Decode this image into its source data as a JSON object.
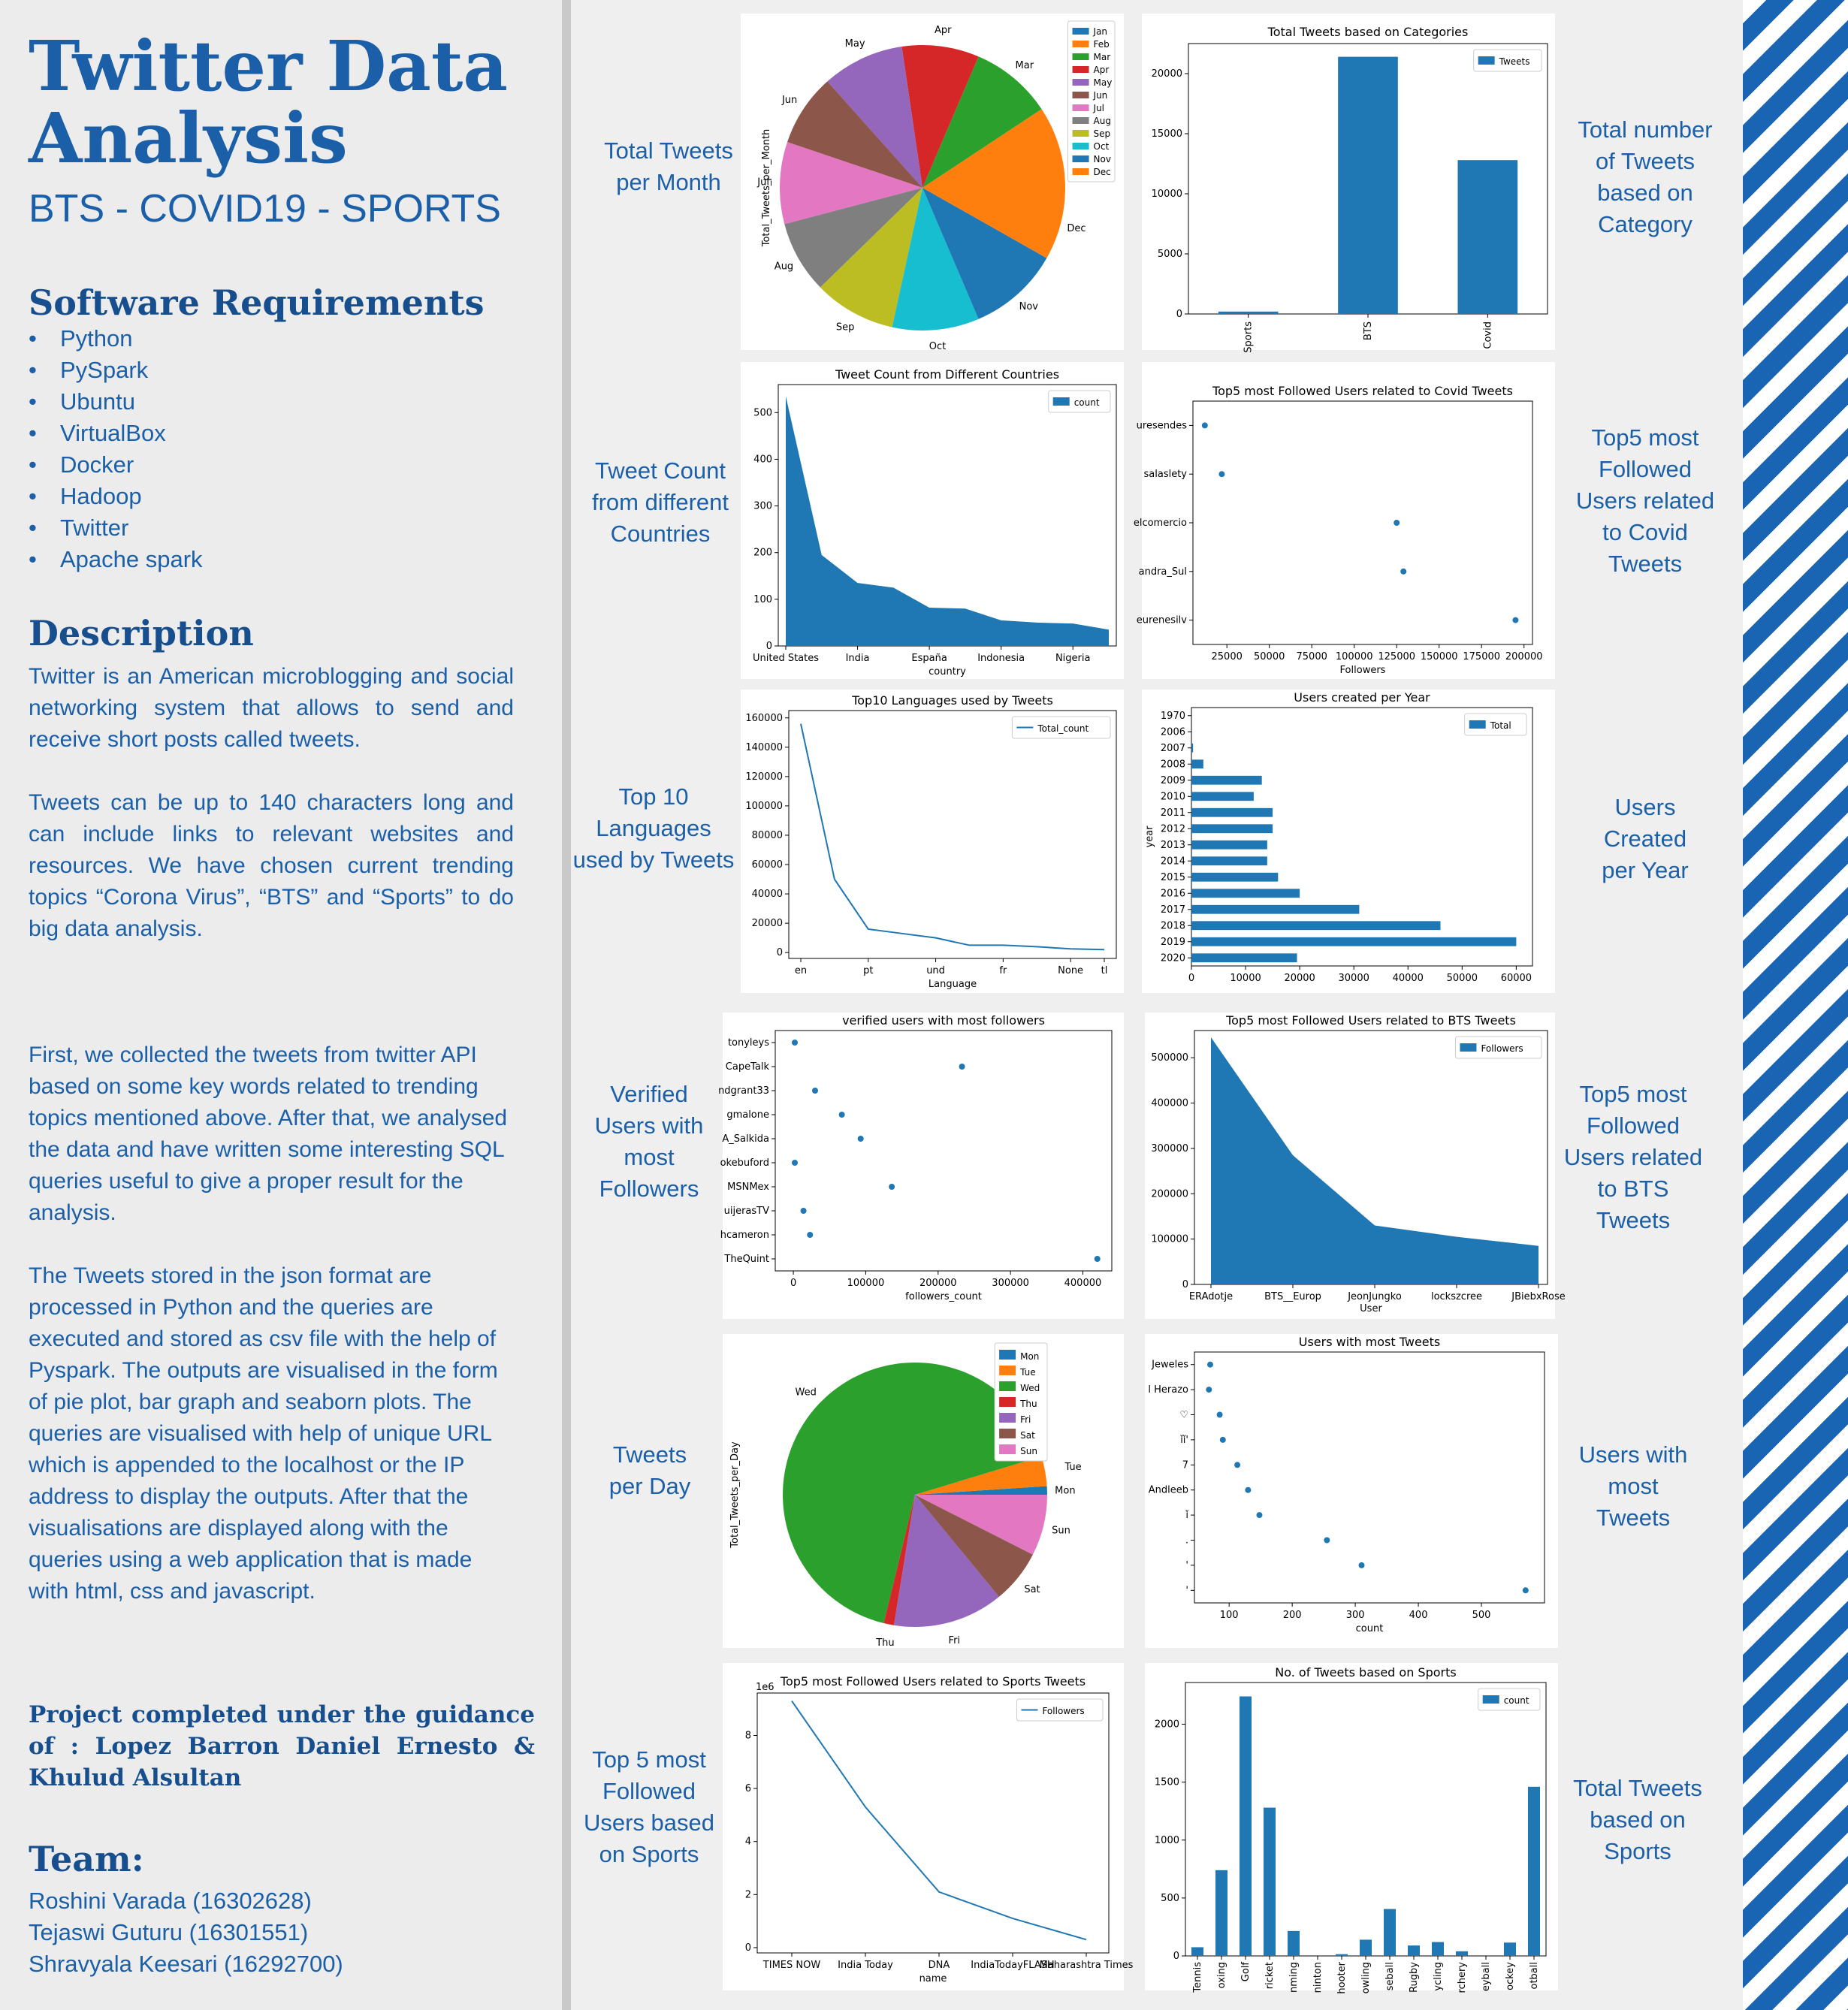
{
  "header": {
    "title": "Twitter Data Analysis",
    "subtitle": "BTS - COVID19 - SPORTS"
  },
  "software": {
    "heading": "Software Requirements",
    "items": [
      "Python",
      "PySpark",
      "Ubuntu",
      "VirtualBox",
      "Docker",
      "Hadoop",
      "Twitter",
      "Apache spark"
    ]
  },
  "description": {
    "heading": "Description",
    "p1": "Twitter is an American microblogging and social networking system that allows to send and receive short posts called tweets.",
    "p2": "Tweets can be up to 140 characters long and can include links to relevant websites and resources. We have chosen current trending topics “Corona Virus”, “BTS” and “Sports” to do big data analysis.",
    "p3": "First, we collected the tweets from twitter API based on some key words related to trending topics mentioned above. After that, we analysed the data and have written some interesting SQL queries useful to give a proper result for the analysis.",
    "p4": "The Tweets stored in the json format are processed in Python and the queries are executed and stored as csv file with the help of Pyspark. The outputs are visualised in the form of pie plot, bar graph and seaborn plots. The queries are visualised with help of unique URL which is appended to the localhost or the IP address to display the outputs. After that the visualisations are displayed along with the queries using a web application that is made with html, css and javascript."
  },
  "guidance": "Project completed under the guidance of : Lopez Barron Daniel Ernesto & Khulud Alsultan",
  "team": {
    "heading": "Team:",
    "members": [
      "Roshini Varada (16302628)",
      "Tejaswi Guturu (16301551)",
      "Shravyala Keesari (16292700)"
    ]
  },
  "captions": {
    "c1": "Total Tweets per Month",
    "c2": "Total number of Tweets based on Category",
    "c3": "Tweet Count from different Countries",
    "c4": "Top5 most Followed Users related to Covid Tweets",
    "c5": "Top 10 Languages used by Tweets",
    "c6": "Users Created per Year",
    "c7": "Verified Users with most Followers",
    "c8": "Top5 most Followed Users related to BTS Tweets",
    "c9": "Tweets per Day",
    "c10": "Users with most Tweets",
    "c11": "Top 5 most Followed Users based on Sports",
    "c12": "Total Tweets based on Sports"
  },
  "colors": {
    "blue": "#1f77b4",
    "orange": "#ff7f0e",
    "green": "#2ca02c",
    "red": "#d62728",
    "purple": "#9467bd",
    "brown": "#8c564b",
    "pink": "#e377c2",
    "gray": "#7f7f7f",
    "olive": "#bcbd22",
    "cyan": "#17becf"
  },
  "chart_data": [
    {
      "id": "month_pie",
      "type": "pie",
      "title": "",
      "ylabel": "Total_Tweets_per_Month",
      "categories": [
        "Jan",
        "Feb",
        "Mar",
        "Apr",
        "May",
        "Jun",
        "Jul",
        "Aug",
        "Sep",
        "Oct",
        "Nov",
        "Dec"
      ],
      "slice_labels": [
        "",
        "F",
        "Mar",
        "Apr",
        "May",
        "Jun",
        "Jul",
        "Aug",
        "Sep",
        "Oct",
        "Nov",
        "Dec"
      ],
      "values": [
        0,
        8.5,
        8.5,
        8.0,
        8.5,
        7.5,
        8.5,
        7.5,
        8.5,
        9.0,
        9.5,
        7.5
      ],
      "legend": "top-right"
    },
    {
      "id": "category_bar",
      "type": "bar",
      "title": "Total Tweets based on Categories",
      "categories": [
        "Sports",
        "BTS",
        "Covid"
      ],
      "values": [
        200,
        21400,
        12800
      ],
      "series": [
        {
          "name": "Tweets",
          "values": [
            200,
            21400,
            12800
          ]
        }
      ],
      "ylim": [
        0,
        22500
      ],
      "yticks": [
        0,
        5000,
        10000,
        15000,
        20000
      ],
      "legend": "top-right"
    },
    {
      "id": "country_area",
      "type": "area",
      "title": "Tweet Count from Different Countries",
      "xlabel": "country",
      "x_tick_labels": [
        "United States",
        "India",
        "España",
        "Indonesia",
        "Nigeria"
      ],
      "values": [
        535,
        195,
        135,
        125,
        82,
        80,
        55,
        50,
        48,
        35
      ],
      "series": [
        {
          "name": "count"
        }
      ],
      "ylim": [
        0,
        560
      ],
      "yticks": [
        0,
        100,
        200,
        300,
        400,
        500
      ],
      "legend": "top-right"
    },
    {
      "id": "covid_scatter",
      "type": "scatter",
      "title": "Top5 most Followed Users related to Covid Tweets",
      "xlabel": "Followers",
      "categories": [
        "uresendes",
        "salaslety",
        "elcomercio",
        "andra_Sul",
        "eurenesilv"
      ],
      "values": [
        12000,
        22000,
        125000,
        129000,
        195000
      ],
      "xlim": [
        5000,
        205000
      ],
      "xticks": [
        25000,
        50000,
        75000,
        100000,
        125000,
        150000,
        175000,
        200000
      ]
    },
    {
      "id": "language_line",
      "type": "line",
      "title": "Top10 Languages used by Tweets",
      "xlabel": "Language",
      "x_tick_labels": [
        "en",
        "pt",
        "und",
        "fr",
        "None",
        "tl"
      ],
      "values": [
        156000,
        50000,
        16000,
        13000,
        10000,
        5000,
        5000,
        4000,
        2500,
        2000
      ],
      "series": [
        {
          "name": "Total_count"
        }
      ],
      "ylim": [
        -4000,
        165000
      ],
      "yticks": [
        0,
        20000,
        40000,
        60000,
        80000,
        100000,
        120000,
        140000,
        160000
      ],
      "legend": "top-right"
    },
    {
      "id": "year_barh",
      "type": "bar",
      "orientation": "horizontal",
      "title": "Users created per Year",
      "ylabel": "year",
      "categories": [
        "1970",
        "2006",
        "2007",
        "2008",
        "2009",
        "2010",
        "2011",
        "2012",
        "2013",
        "2014",
        "2015",
        "2016",
        "2017",
        "2018",
        "2019",
        "2020"
      ],
      "values": [
        0,
        0,
        300,
        2200,
        13000,
        11500,
        15000,
        15000,
        14000,
        14000,
        16000,
        20000,
        31000,
        46000,
        60000,
        19500
      ],
      "series": [
        {
          "name": "Total"
        }
      ],
      "xlim": [
        0,
        63000
      ],
      "xticks": [
        0,
        10000,
        20000,
        30000,
        40000,
        50000,
        60000
      ],
      "legend": "top-right"
    },
    {
      "id": "verified_scatter",
      "type": "scatter",
      "title": "verified users with most followers",
      "xlabel": "followers_count",
      "categories": [
        "tonyleys",
        "CapeTalk",
        "ndgrant33",
        "gmalone",
        "A_Salkida",
        "okebuford",
        "MSNMex",
        "uijerasTV",
        "hcameron",
        "TheQuint"
      ],
      "values": [
        2000,
        233000,
        30000,
        67000,
        93000,
        2000,
        136000,
        14000,
        23000,
        420000
      ],
      "xlim": [
        -25000,
        440000
      ],
      "xticks": [
        0,
        100000,
        200000,
        300000,
        400000
      ]
    },
    {
      "id": "bts_area",
      "type": "area",
      "title": "Top5 most Followed Users related to BTS Tweets",
      "xlabel": "User",
      "categories": [
        "ERAdotje",
        "BTS__Europ",
        "JeonJungko",
        "lockszcree",
        "JBiebxRose"
      ],
      "values": [
        545000,
        285000,
        130000,
        105000,
        85000
      ],
      "series": [
        {
          "name": "Followers"
        }
      ],
      "ylim": [
        0,
        560000
      ],
      "yticks": [
        0,
        100000,
        200000,
        300000,
        400000,
        500000
      ],
      "legend": "top-right"
    },
    {
      "id": "day_pie",
      "type": "pie",
      "title": "",
      "ylabel": "Total_Tweets_per_Day",
      "categories": [
        "Mon",
        "Tue",
        "Wed",
        "Thu",
        "Fri",
        "Sat",
        "Sun"
      ],
      "slice_labels": [
        "Mon",
        "Tue",
        "Wed",
        "Thu",
        "Fri",
        "Sat",
        "Sun"
      ],
      "values": [
        1.0,
        3.5,
        64,
        1.2,
        13,
        6.3,
        7.2
      ],
      "legend": "top-right"
    },
    {
      "id": "users_scatter",
      "type": "scatter",
      "title": "Users with most Tweets",
      "xlabel": "count",
      "categories": [
        "Jeweles",
        "l Herazo",
        "♡",
        "ǐǐ'",
        "7",
        "Andleeb",
        "ǐ",
        ".",
        "'",
        "'"
      ],
      "values": [
        70,
        68,
        85,
        90,
        113,
        130,
        148,
        255,
        310,
        570
      ],
      "xlim": [
        45,
        600
      ],
      "xticks": [
        100,
        200,
        300,
        400,
        500
      ]
    },
    {
      "id": "sports_line",
      "type": "line",
      "title": "Top5 most Followed Users related to Sports Tweets",
      "xlabel": "name",
      "x_tick_labels": [
        "TIMES NOW",
        "India Today",
        "DNA",
        "IndiaTodayFLASH",
        "Maharashtra Times"
      ],
      "values": [
        9.3,
        5.3,
        2.1,
        1.1,
        0.3
      ],
      "y_scale_note": "1e6",
      "series": [
        {
          "name": "Followers"
        }
      ],
      "ylim": [
        -0.2,
        9.6
      ],
      "yticks": [
        0,
        2,
        4,
        6,
        8
      ],
      "legend": "top-right"
    },
    {
      "id": "sports_bar",
      "type": "bar",
      "title": "No. of Tweets based on Sports",
      "categories": [
        "Tennis",
        "Boxing",
        "Golf",
        "Cricket",
        "Swimming",
        "Badminton",
        "Shooter",
        "Bowling",
        "Baseball",
        "Rugby",
        "Cycling",
        "Archery",
        "Volleyball",
        "Hockey",
        "Football"
      ],
      "tick_labels": [
        "Tennis",
        "oxing",
        "Golf",
        "ricket",
        "nming",
        "ninton",
        "hooter",
        "owling",
        "seball",
        "Rugby",
        "ycling",
        "rchery",
        "eyball",
        "ockey",
        "otball"
      ],
      "values": [
        75,
        740,
        2240,
        1280,
        215,
        0,
        15,
        140,
        405,
        90,
        120,
        40,
        0,
        115,
        1460
      ],
      "series": [
        {
          "name": "count"
        }
      ],
      "ylim": [
        0,
        2360
      ],
      "yticks": [
        0,
        500,
        1000,
        1500,
        2000
      ],
      "legend": "top-right"
    }
  ]
}
